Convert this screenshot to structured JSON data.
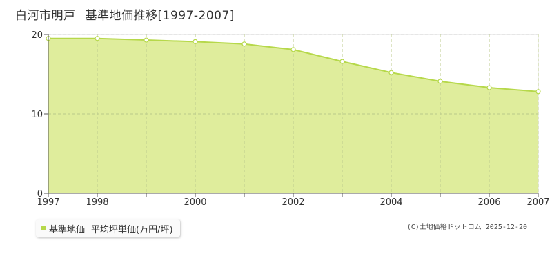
{
  "header": {
    "location": "白河市明戸",
    "subtitle": "基準地価推移[1997-2007]"
  },
  "legend": {
    "series_label": "基準地価",
    "unit_label": "平均坪単価(万円/坪)"
  },
  "credit": "(C)土地価格ドットコム 2025-12-20",
  "colors": {
    "area_fill": "#dcec94",
    "line": "#b6d84a",
    "marker_fill": "#ffffff",
    "grid": "#cccccc",
    "axis": "#555555"
  },
  "chart_data": {
    "type": "area",
    "x": [
      1997,
      1998,
      1999,
      2000,
      2001,
      2002,
      2003,
      2004,
      2005,
      2006,
      2007
    ],
    "series": [
      {
        "name": "基準地価",
        "values": [
          19.5,
          19.5,
          19.3,
          19.1,
          18.8,
          18.1,
          16.6,
          15.2,
          14.1,
          13.3,
          12.8
        ]
      }
    ],
    "xlim": [
      1997,
      2007
    ],
    "ylim": [
      0,
      20
    ],
    "yticks": [
      0,
      10,
      20
    ],
    "xtick_labels": [
      "1997",
      "1998",
      "2000",
      "2002",
      "2004",
      "2006",
      "2007"
    ],
    "xlabel": "",
    "ylabel": "",
    "grid": true,
    "legend_position": "bottom-left"
  }
}
